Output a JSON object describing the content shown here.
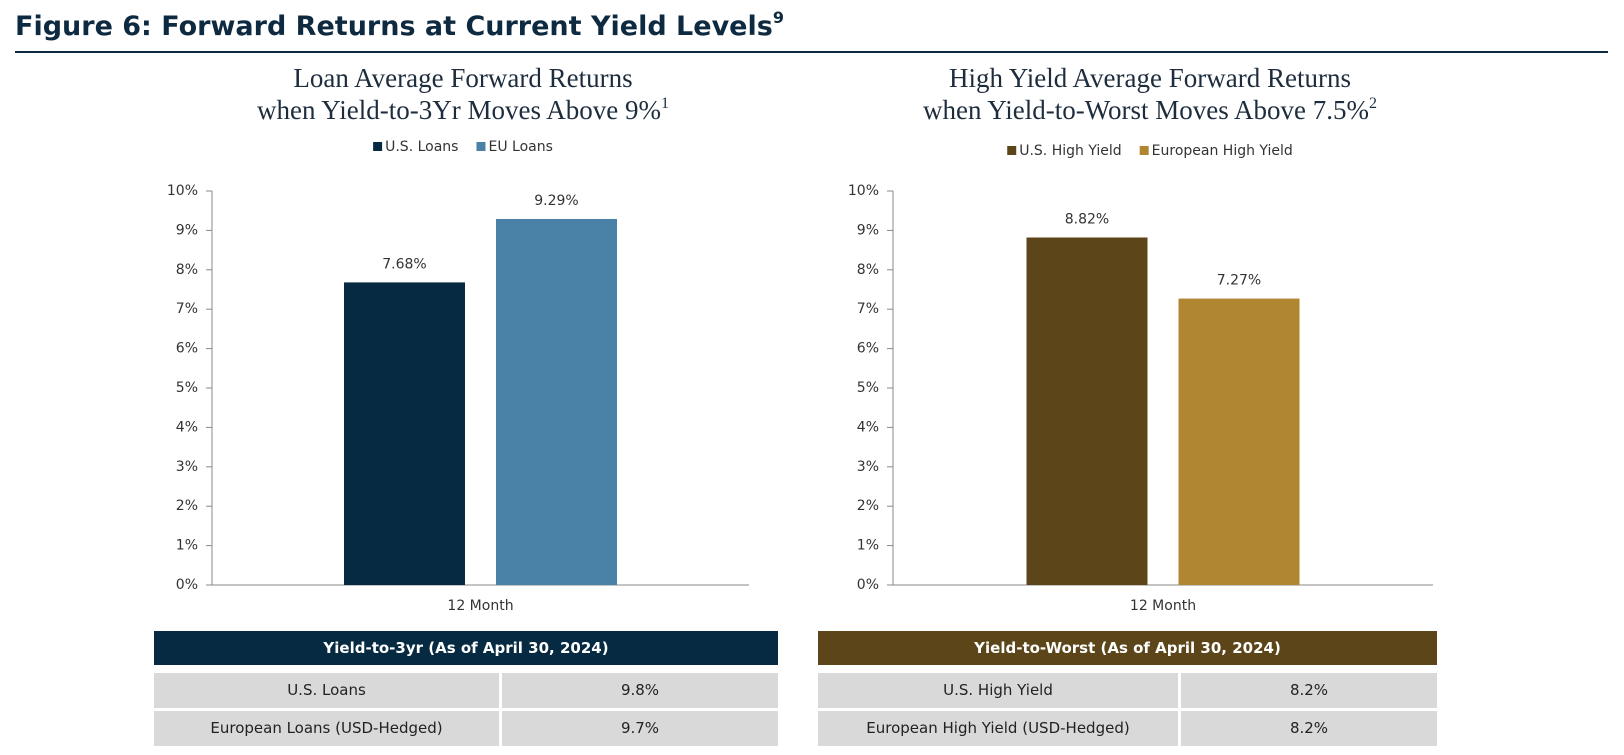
{
  "title": "Figure 6: Forward Returns at Current Yield Levels",
  "title_sup": "9",
  "chart_data": [
    {
      "type": "bar",
      "title": [
        "Loan Average Forward Returns",
        "when Yield-to-3Yr Moves Above 9%"
      ],
      "title_sup": "1",
      "categories": [
        "12 Month"
      ],
      "series": [
        {
          "name": "U.S. Loans",
          "color": "#052a42",
          "values": [
            7.68
          ],
          "value_labels": [
            "7.68%"
          ]
        },
        {
          "name": "EU Loans",
          "color": "#4a81a6",
          "values": [
            9.29
          ],
          "value_labels": [
            "9.29%"
          ]
        }
      ],
      "ylim": [
        0,
        10
      ],
      "yticks": [
        {
          "value": 0,
          "label": "0%"
        },
        {
          "value": 1,
          "label": "1%"
        },
        {
          "value": 2,
          "label": "2%"
        },
        {
          "value": 3,
          "label": "3%"
        },
        {
          "value": 4,
          "label": "4%"
        },
        {
          "value": 5,
          "label": "5%"
        },
        {
          "value": 6,
          "label": "6%"
        },
        {
          "value": 7,
          "label": "7%"
        },
        {
          "value": 8,
          "label": "8%"
        },
        {
          "value": 9,
          "label": "9%"
        },
        {
          "value": 10,
          "label": "10%"
        }
      ],
      "grid": false,
      "legend": "top"
    },
    {
      "type": "bar",
      "title": [
        "High Yield Average Forward Returns",
        "when Yield-to-Worst Moves Above 7.5%"
      ],
      "title_sup": "2",
      "categories": [
        "12 Month"
      ],
      "series": [
        {
          "name": "U.S. High Yield",
          "color": "#5c4619",
          "values": [
            8.82
          ],
          "value_labels": [
            "8.82%"
          ]
        },
        {
          "name": "European High Yield",
          "color": "#b08631",
          "values": [
            7.27
          ],
          "value_labels": [
            "7.27%"
          ]
        }
      ],
      "ylim": [
        0,
        10
      ],
      "yticks": [
        {
          "value": 0,
          "label": "0%"
        },
        {
          "value": 1,
          "label": "1%"
        },
        {
          "value": 2,
          "label": "2%"
        },
        {
          "value": 3,
          "label": "3%"
        },
        {
          "value": 4,
          "label": "4%"
        },
        {
          "value": 5,
          "label": "5%"
        },
        {
          "value": 6,
          "label": "6%"
        },
        {
          "value": 7,
          "label": "7%"
        },
        {
          "value": 8,
          "label": "8%"
        },
        {
          "value": 9,
          "label": "9%"
        },
        {
          "value": 10,
          "label": "10%"
        }
      ],
      "grid": false,
      "legend": "top"
    }
  ],
  "tables": [
    {
      "header": "Yield-to-3yr (As of April 30, 2024)",
      "color": "#052a42",
      "rows": [
        [
          "U.S. Loans",
          "9.8%"
        ],
        [
          "European Loans (USD-Hedged)",
          "9.7%"
        ]
      ]
    },
    {
      "header": "Yield-to-Worst (As of April 30, 2024)",
      "color": "#5c4619",
      "rows": [
        [
          "U.S. High Yield",
          "8.2%"
        ],
        [
          "European High Yield (USD-Hedged)",
          "8.2%"
        ]
      ]
    }
  ]
}
